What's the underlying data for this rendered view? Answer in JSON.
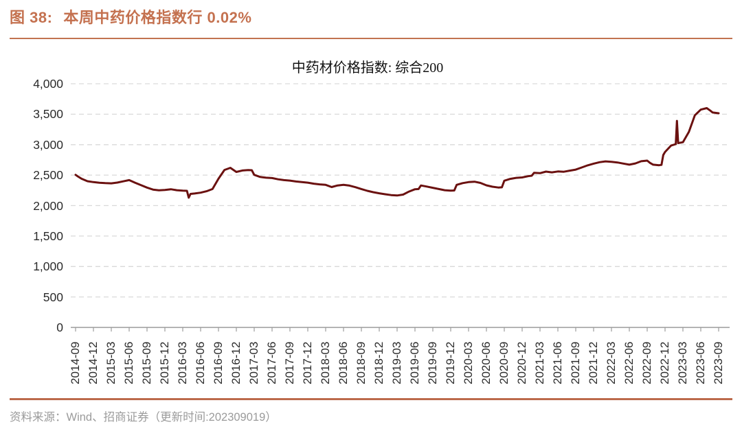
{
  "figure": {
    "label": "图 38:",
    "title": "本周中药价格指数行 0.02%",
    "accent_color": "#C4714F"
  },
  "source_note": {
    "prefix": "资料来源：",
    "text": "Wind、招商证券（更新时间:202309019）"
  },
  "chart_data": {
    "type": "line",
    "title": "中药材价格指数: 综合200",
    "xlabel": "",
    "ylabel": "",
    "ylim": [
      0,
      4000
    ],
    "grid": "horizontal-dashed",
    "grid_color": "#D9D9D9",
    "axis_color": "#9C9C9C",
    "legend_position": "none",
    "y_ticks": [
      0,
      500,
      1000,
      1500,
      2000,
      2500,
      3000,
      3500,
      4000
    ],
    "y_tick_labels": [
      "0",
      "500",
      "1,000",
      "1,500",
      "2,000",
      "2,500",
      "3,000",
      "3,500",
      "4,000"
    ],
    "x_tick_labels": [
      "2014-09",
      "2014-12",
      "2015-03",
      "2015-06",
      "2015-09",
      "2015-12",
      "2016-03",
      "2016-06",
      "2016-09",
      "2016-12",
      "2017-03",
      "2017-06",
      "2017-09",
      "2017-12",
      "2018-03",
      "2018-06",
      "2018-09",
      "2018-12",
      "2019-03",
      "2019-06",
      "2019-09",
      "2019-12",
      "2020-03",
      "2020-06",
      "2020-09",
      "2020-12",
      "2021-03",
      "2021-06",
      "2021-09",
      "2021-12",
      "2022-03",
      "2022-06",
      "2022-09",
      "2022-12",
      "2023-03",
      "2023-06",
      "2023-09"
    ],
    "x_unit": "months since 2014-09 (0 = 2014-09, 108 = 2023-09)",
    "series": [
      {
        "name": "中药材价格指数: 综合200",
        "color": "#6B1110",
        "points": [
          [
            0,
            2505
          ],
          [
            0.4,
            2478
          ],
          [
            1,
            2440
          ],
          [
            2,
            2400
          ],
          [
            3,
            2385
          ],
          [
            4,
            2375
          ],
          [
            5,
            2368
          ],
          [
            6,
            2365
          ],
          [
            7,
            2378
          ],
          [
            8,
            2398
          ],
          [
            9,
            2418
          ],
          [
            10,
            2375
          ],
          [
            11,
            2335
          ],
          [
            12,
            2295
          ],
          [
            13,
            2262
          ],
          [
            14,
            2250
          ],
          [
            15,
            2256
          ],
          [
            16,
            2268
          ],
          [
            17,
            2252
          ],
          [
            18,
            2244
          ],
          [
            18.7,
            2242
          ],
          [
            19,
            2130
          ],
          [
            19.3,
            2192
          ],
          [
            20,
            2198
          ],
          [
            21,
            2212
          ],
          [
            22,
            2235
          ],
          [
            23,
            2272
          ],
          [
            24,
            2440
          ],
          [
            25,
            2585
          ],
          [
            26,
            2620
          ],
          [
            27,
            2552
          ],
          [
            28,
            2576
          ],
          [
            29,
            2584
          ],
          [
            29.6,
            2580
          ],
          [
            30,
            2505
          ],
          [
            31,
            2470
          ],
          [
            32,
            2458
          ],
          [
            33,
            2452
          ],
          [
            34,
            2432
          ],
          [
            35,
            2418
          ],
          [
            36,
            2410
          ],
          [
            37,
            2396
          ],
          [
            38,
            2386
          ],
          [
            39,
            2376
          ],
          [
            40,
            2360
          ],
          [
            41,
            2348
          ],
          [
            42,
            2340
          ],
          [
            43,
            2304
          ],
          [
            44,
            2330
          ],
          [
            45,
            2340
          ],
          [
            46,
            2328
          ],
          [
            47,
            2302
          ],
          [
            48,
            2272
          ],
          [
            49,
            2242
          ],
          [
            50,
            2220
          ],
          [
            51,
            2202
          ],
          [
            52,
            2186
          ],
          [
            53,
            2172
          ],
          [
            54,
            2166
          ],
          [
            55,
            2180
          ],
          [
            56,
            2230
          ],
          [
            57,
            2268
          ],
          [
            57.6,
            2272
          ],
          [
            58,
            2330
          ],
          [
            59,
            2312
          ],
          [
            60,
            2292
          ],
          [
            61,
            2272
          ],
          [
            62,
            2252
          ],
          [
            63,
            2244
          ],
          [
            63.6,
            2248
          ],
          [
            64,
            2340
          ],
          [
            65,
            2368
          ],
          [
            66,
            2385
          ],
          [
            67,
            2392
          ],
          [
            68,
            2372
          ],
          [
            69,
            2332
          ],
          [
            70,
            2310
          ],
          [
            71,
            2296
          ],
          [
            71.6,
            2300
          ],
          [
            72,
            2408
          ],
          [
            73,
            2438
          ],
          [
            74,
            2455
          ],
          [
            75,
            2462
          ],
          [
            76,
            2482
          ],
          [
            76.6,
            2490
          ],
          [
            77,
            2538
          ],
          [
            78,
            2532
          ],
          [
            79,
            2558
          ],
          [
            80,
            2545
          ],
          [
            81,
            2560
          ],
          [
            82,
            2556
          ],
          [
            83,
            2574
          ],
          [
            84,
            2590
          ],
          [
            85,
            2625
          ],
          [
            86,
            2660
          ],
          [
            87,
            2688
          ],
          [
            88,
            2712
          ],
          [
            89,
            2726
          ],
          [
            90,
            2718
          ],
          [
            91,
            2708
          ],
          [
            92,
            2690
          ],
          [
            93,
            2672
          ],
          [
            94,
            2692
          ],
          [
            95,
            2728
          ],
          [
            96,
            2738
          ],
          [
            96.5,
            2700
          ],
          [
            97,
            2672
          ],
          [
            98,
            2662
          ],
          [
            98.4,
            2668
          ],
          [
            98.7,
            2830
          ],
          [
            99,
            2880
          ],
          [
            100,
            2985
          ],
          [
            100.8,
            3008
          ],
          [
            101,
            3390
          ],
          [
            101.2,
            3025
          ],
          [
            102,
            3040
          ],
          [
            103,
            3210
          ],
          [
            104,
            3480
          ],
          [
            105,
            3575
          ],
          [
            106,
            3600
          ],
          [
            106.6,
            3558
          ],
          [
            107,
            3528
          ],
          [
            108,
            3515
          ]
        ]
      }
    ]
  }
}
